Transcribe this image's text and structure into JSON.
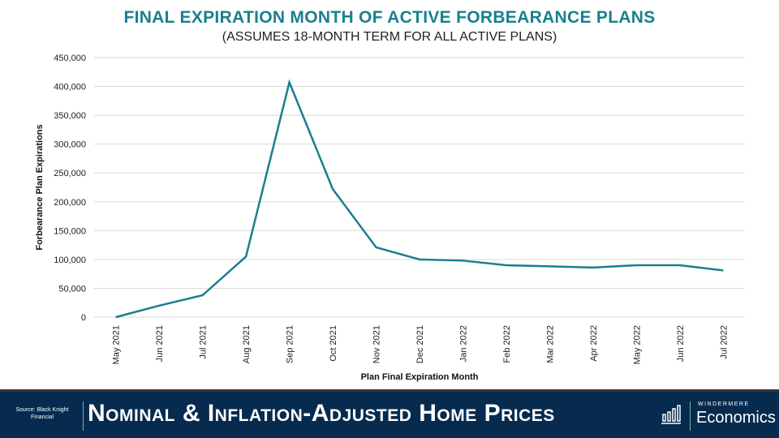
{
  "chart_data": {
    "type": "line",
    "title": "FINAL EXPIRATION MONTH OF ACTIVE FORBEARANCE PLANS",
    "subtitle": "(ASSUMES 18-MONTH TERM FOR ALL ACTIVE PLANS)",
    "xlabel": "Plan Final Expiration Month",
    "ylabel": "Forbearance Plan Expirations",
    "ylim": [
      0,
      450000
    ],
    "yticks": [
      "0",
      "50,000",
      "100,000",
      "150,000",
      "200,000",
      "250,000",
      "300,000",
      "350,000",
      "400,000",
      "450,000"
    ],
    "grid": true,
    "line_color": "#1a7f8e",
    "categories": [
      "May 2021",
      "Jun 2021",
      "Jul 2021",
      "Aug 2021",
      "Sep 2021",
      "Oct 2021",
      "Nov 2021",
      "Dec 2021",
      "Jan 2022",
      "Feb 2022",
      "Mar 2022",
      "Apr 2022",
      "May 2022",
      "Jun 2022",
      "Jul 2022"
    ],
    "values": [
      0,
      20000,
      38000,
      105000,
      407000,
      222000,
      121000,
      100000,
      98000,
      90000,
      88000,
      86000,
      90000,
      90000,
      81000
    ]
  },
  "footer": {
    "source": "Source: Black Knight Financial",
    "title": "Nominal & Inflation-Adjusted Home Prices",
    "brand_top": "WINDERMERE",
    "brand_bottom": "Economics",
    "icon": "bar-chart-icon",
    "bg_color": "#062b4f"
  }
}
